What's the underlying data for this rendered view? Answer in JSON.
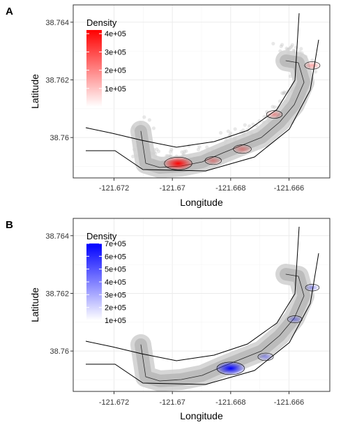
{
  "chart_data": [
    {
      "type": "density-map",
      "panel_label": "A",
      "xlabel": "Longitude",
      "ylabel": "Latitude",
      "xlim": [
        -121.6734,
        -121.6646
      ],
      "ylim": [
        38.7586,
        38.7646
      ],
      "x_ticks": [
        -121.672,
        -121.67,
        -121.668,
        -121.666
      ],
      "x_tick_labels": [
        "-121.672",
        "-121.67",
        "-121.668",
        "-121.666"
      ],
      "y_ticks": [
        38.76,
        38.762,
        38.764
      ],
      "y_tick_labels": [
        "38.76",
        "38.762",
        "38.764"
      ],
      "grid": true,
      "legend": {
        "title": "Density",
        "position": "top-left",
        "min": 0,
        "max": 420000,
        "breaks": [
          400000,
          300000,
          200000,
          100000
        ],
        "labels": [
          "4e+05",
          "3e+05",
          "2e+05",
          "1e+05"
        ],
        "color_low": "#ffffff",
        "color_high": "#ff0000"
      },
      "hotspots": [
        {
          "x": -121.6698,
          "y": 38.7591,
          "peak": 420000
        },
        {
          "x": -121.6676,
          "y": 38.7596,
          "peak": 150000
        },
        {
          "x": -121.6686,
          "y": 38.7592,
          "peak": 110000
        },
        {
          "x": -121.6665,
          "y": 38.7608,
          "peak": 90000
        },
        {
          "x": -121.6652,
          "y": 38.7625,
          "peak": 80000
        }
      ]
    },
    {
      "type": "density-map",
      "panel_label": "B",
      "xlabel": "Longitude",
      "ylabel": "Latitude",
      "xlim": [
        -121.6734,
        -121.6646
      ],
      "ylim": [
        38.7586,
        38.7646
      ],
      "x_ticks": [
        -121.672,
        -121.67,
        -121.668,
        -121.666
      ],
      "x_tick_labels": [
        "-121.672",
        "-121.67",
        "-121.668",
        "-121.666"
      ],
      "y_ticks": [
        38.76,
        38.762,
        38.764
      ],
      "y_tick_labels": [
        "38.76",
        "38.762",
        "38.764"
      ],
      "grid": true,
      "legend": {
        "title": "Density",
        "position": "top-left",
        "min": 100000,
        "max": 700000,
        "breaks": [
          700000,
          600000,
          500000,
          400000,
          300000,
          200000,
          100000
        ],
        "labels": [
          "7e+05",
          "6e+05",
          "5e+05",
          "4e+05",
          "3e+05",
          "2e+05",
          "1e+05"
        ],
        "color_low": "#ffffff",
        "color_high": "#0000ff"
      },
      "hotspots": [
        {
          "x": -121.668,
          "y": 38.7594,
          "peak": 700000
        },
        {
          "x": -121.6668,
          "y": 38.7598,
          "peak": 220000
        },
        {
          "x": -121.6658,
          "y": 38.7611,
          "peak": 180000
        },
        {
          "x": -121.6652,
          "y": 38.7622,
          "peak": 150000
        }
      ]
    }
  ]
}
